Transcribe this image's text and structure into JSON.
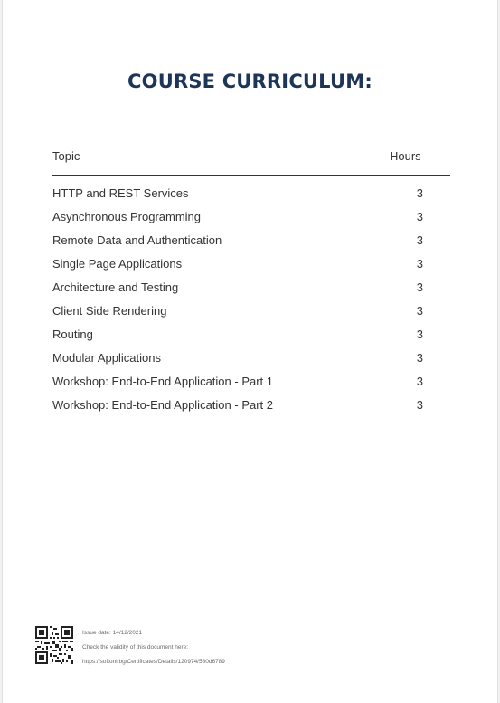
{
  "title": "COURSE CURRICULUM:",
  "table": {
    "headers": {
      "topic": "Topic",
      "hours": "Hours"
    },
    "rows": [
      {
        "topic": "HTTP and REST Services",
        "hours": "3"
      },
      {
        "topic": "Asynchronous Programming",
        "hours": "3"
      },
      {
        "topic": "Remote Data and Authentication",
        "hours": "3"
      },
      {
        "topic": "Single Page Applications",
        "hours": "3"
      },
      {
        "topic": "Architecture and Testing",
        "hours": "3"
      },
      {
        "topic": "Client Side Rendering",
        "hours": "3"
      },
      {
        "topic": "Routing",
        "hours": "3"
      },
      {
        "topic": "Modular Applications",
        "hours": "3"
      },
      {
        "topic": "Workshop: End-to-End Application - Part 1",
        "hours": "3"
      },
      {
        "topic": "Workshop: End-to-End Application - Part 2",
        "hours": "3"
      }
    ]
  },
  "footer": {
    "issue_date": "Issue date: 14/12/2021",
    "validity_text": "Check the validity of this document here:",
    "validity_url": "https://softuni.bg/Certificates/Details/120974/580d6789"
  },
  "colors": {
    "title": "#1d3557",
    "text": "#333333"
  },
  "icons": {
    "qr": "qr-code-icon"
  }
}
